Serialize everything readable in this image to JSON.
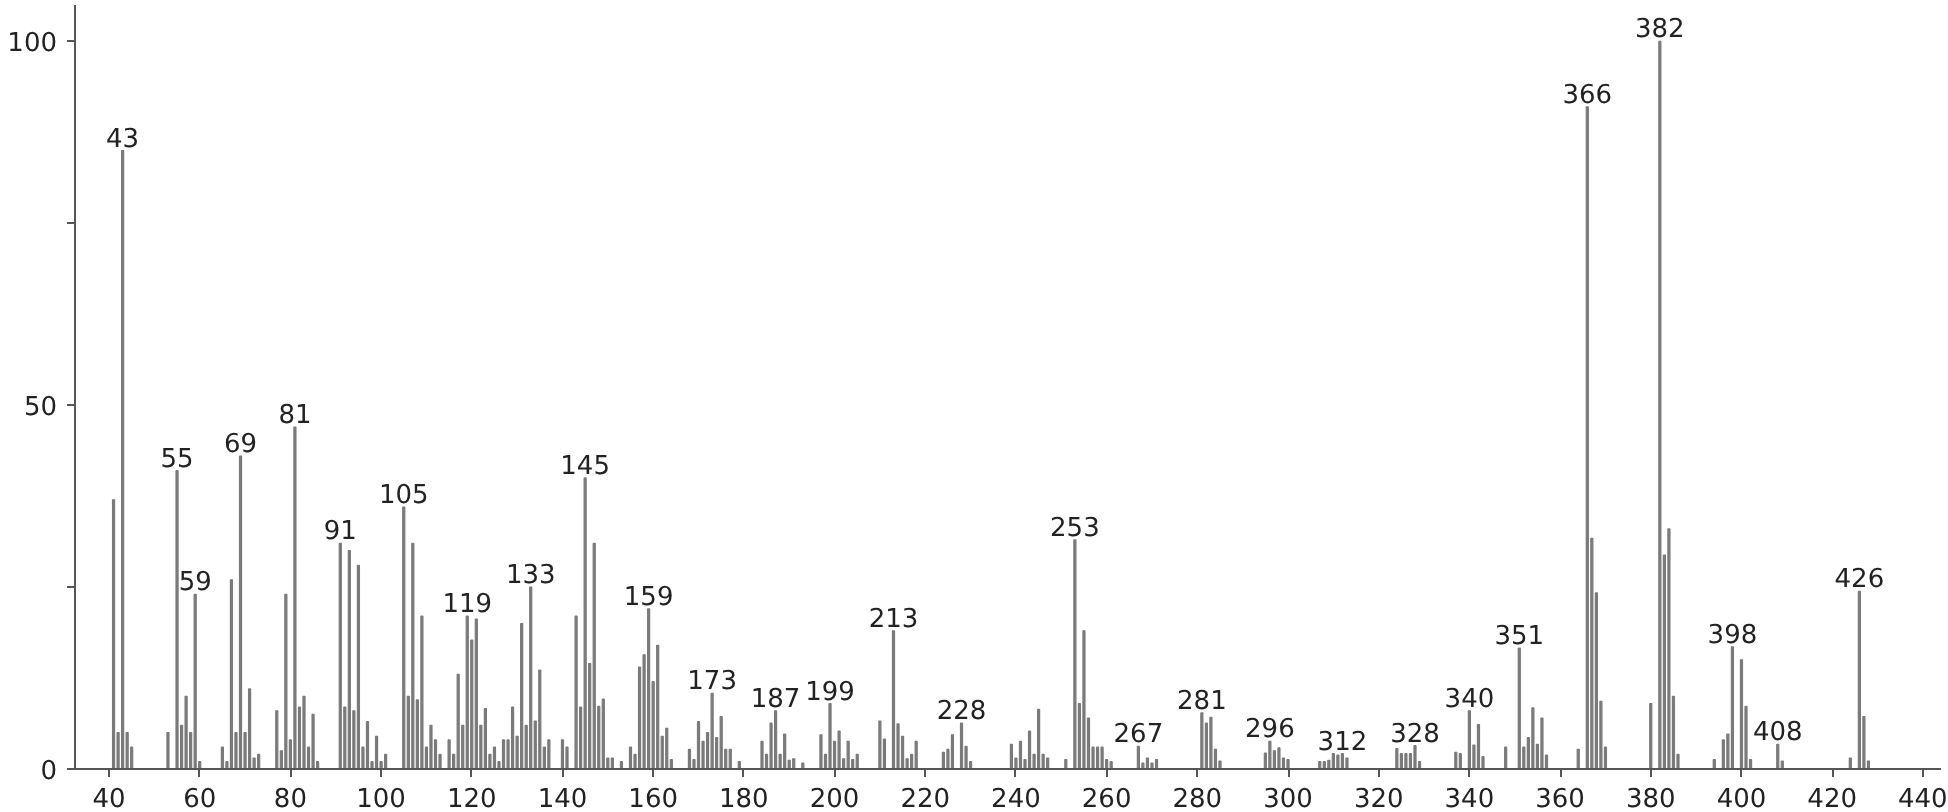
{
  "chart_data": {
    "type": "bar",
    "color": "#7a7a7a",
    "x": [
      41,
      42,
      43,
      44,
      45,
      53,
      55,
      56,
      57,
      58,
      59,
      60,
      65,
      66,
      67,
      68,
      69,
      70,
      71,
      72,
      73,
      77,
      78,
      79,
      80,
      81,
      82,
      83,
      84,
      85,
      86,
      91,
      92,
      93,
      94,
      95,
      96,
      97,
      98,
      99,
      100,
      101,
      105,
      106,
      107,
      108,
      109,
      110,
      111,
      112,
      113,
      115,
      116,
      117,
      118,
      119,
      120,
      121,
      122,
      123,
      124,
      125,
      126,
      127,
      128,
      129,
      130,
      131,
      132,
      133,
      134,
      135,
      136,
      137,
      140,
      141,
      143,
      144,
      145,
      146,
      147,
      148,
      149,
      150,
      151,
      153,
      155,
      156,
      157,
      158,
      159,
      160,
      161,
      162,
      163,
      164,
      168,
      169,
      170,
      171,
      172,
      173,
      174,
      175,
      176,
      177,
      179,
      184,
      185,
      186,
      187,
      188,
      189,
      190,
      191,
      193,
      197,
      198,
      199,
      200,
      201,
      202,
      203,
      204,
      205,
      210,
      211,
      213,
      214,
      215,
      216,
      217,
      218,
      224,
      225,
      226,
      228,
      229,
      230,
      239,
      240,
      241,
      242,
      243,
      244,
      245,
      246,
      247,
      251,
      253,
      254,
      255,
      256,
      257,
      258,
      259,
      260,
      261,
      267,
      268,
      269,
      270,
      271,
      281,
      282,
      283,
      284,
      285,
      295,
      296,
      297,
      298,
      299,
      300,
      307,
      308,
      309,
      310,
      311,
      312,
      313,
      324,
      325,
      326,
      327,
      328,
      329,
      337,
      338,
      340,
      341,
      342,
      343,
      348,
      351,
      352,
      353,
      354,
      355,
      356,
      357,
      364,
      366,
      367,
      368,
      369,
      370,
      380,
      382,
      383,
      384,
      385,
      386,
      394,
      396,
      397,
      398,
      400,
      401,
      402,
      408,
      409,
      424,
      426,
      427,
      428
    ],
    "values": [
      37,
      5,
      85,
      5,
      3,
      5,
      41,
      6,
      10,
      5,
      24,
      1,
      3,
      1,
      26,
      5,
      43,
      5,
      11,
      1.5,
      2,
      8,
      2.5,
      24,
      4,
      47,
      8.5,
      10,
      3,
      7.5,
      1,
      31,
      8.5,
      30,
      8,
      28,
      3,
      6.5,
      1,
      4.5,
      1,
      2,
      36,
      10,
      31,
      9.5,
      21,
      3,
      6,
      4,
      2,
      4,
      2,
      13,
      6,
      21,
      17.7,
      20.6,
      6,
      8.3,
      2,
      3,
      1,
      4,
      4,
      8.5,
      4.5,
      20,
      6,
      25,
      6.6,
      13.6,
      3,
      4,
      4,
      3,
      21,
      8.5,
      40,
      14.5,
      31,
      8.6,
      9.6,
      1.5,
      1.5,
      1,
      3,
      2,
      14,
      15.7,
      22,
      12,
      17,
      4.5,
      5.6,
      1.3,
      2.7,
      1.3,
      6.5,
      3.8,
      5,
      10.4,
      4.3,
      7.2,
      2.7,
      2.7,
      1,
      3.8,
      2,
      6.3,
      8,
      2,
      4.8,
      1.2,
      1.4,
      0.8,
      4.7,
      2,
      9,
      3.8,
      5.2,
      1.4,
      3.8,
      1.3,
      2,
      6.6,
      4.1,
      19,
      6.2,
      4.5,
      1.4,
      2,
      3.8,
      2.3,
      2.7,
      4.7,
      6.3,
      3.1,
      1,
      3.4,
      1.5,
      3.8,
      1.3,
      5.2,
      2,
      8.2,
      2,
      1.5,
      1.3,
      31.5,
      9,
      19,
      7,
      3,
      3,
      3,
      1.3,
      1,
      3.1,
      0.8,
      1.5,
      0.8,
      1.3,
      7.7,
      6.3,
      7.1,
      2.7,
      1.1,
      2.2,
      3.8,
      2.5,
      2.9,
      1.5,
      1.3,
      1,
      1,
      1.2,
      2.1,
      1.9,
      2.1,
      1.5,
      2.8,
      2.1,
      2.1,
      2.1,
      3.2,
      1,
      2.3,
      2.1,
      8,
      3.3,
      6.1,
      1.7,
      3,
      16.6,
      3,
      4.3,
      8.4,
      3.4,
      7,
      1.9,
      2.7,
      91,
      31.7,
      24.2,
      9.3,
      3,
      9,
      100,
      29.4,
      33,
      10,
      2,
      1.3,
      4,
      4.8,
      16.8,
      15,
      8.6,
      1.3,
      3.4,
      1.1,
      1.5,
      24.4,
      7.2,
      1.1
    ],
    "xlim": [
      32.5,
      444
    ],
    "ylim": [
      0,
      105
    ],
    "xticks": [
      40,
      60,
      80,
      100,
      120,
      140,
      160,
      180,
      200,
      220,
      240,
      260,
      280,
      300,
      320,
      340,
      360,
      380,
      400,
      420,
      440
    ],
    "yticks": [
      0,
      {
        "value": 25,
        "label": null
      },
      50,
      {
        "value": 75,
        "label": null
      },
      100
    ],
    "annotations": [
      {
        "text": "43",
        "x": 43,
        "y": 85
      },
      {
        "text": "55",
        "x": 55,
        "y": 41
      },
      {
        "text": "59",
        "x": 59,
        "y": 24
      },
      {
        "text": "69",
        "x": 69,
        "y": 43
      },
      {
        "text": "81",
        "x": 81,
        "y": 47
      },
      {
        "text": "91",
        "x": 91,
        "y": 31
      },
      {
        "text": "105",
        "x": 105,
        "y": 36
      },
      {
        "text": "119",
        "x": 119,
        "y": 21
      },
      {
        "text": "133",
        "x": 133,
        "y": 25
      },
      {
        "text": "145",
        "x": 145,
        "y": 40
      },
      {
        "text": "159",
        "x": 159,
        "y": 22
      },
      {
        "text": "173",
        "x": 173,
        "y": 10.4
      },
      {
        "text": "187",
        "x": 187,
        "y": 8
      },
      {
        "text": "199",
        "x": 199,
        "y": 9
      },
      {
        "text": "213",
        "x": 213,
        "y": 19
      },
      {
        "text": "228",
        "x": 228,
        "y": 6.3
      },
      {
        "text": "253",
        "x": 253,
        "y": 31.5
      },
      {
        "text": "267",
        "x": 267,
        "y": 3.1
      },
      {
        "text": "281",
        "x": 281,
        "y": 7.7
      },
      {
        "text": "296",
        "x": 296,
        "y": 3.8
      },
      {
        "text": "312",
        "x": 312,
        "y": 2.1
      },
      {
        "text": "328",
        "x": 328,
        "y": 3.2
      },
      {
        "text": "340",
        "x": 340,
        "y": 8
      },
      {
        "text": "351",
        "x": 351,
        "y": 16.6
      },
      {
        "text": "366",
        "x": 366,
        "y": 91
      },
      {
        "text": "382",
        "x": 382,
        "y": 100
      },
      {
        "text": "398",
        "x": 398,
        "y": 16.8
      },
      {
        "text": "408",
        "x": 408,
        "y": 3.4
      },
      {
        "text": "426",
        "x": 426,
        "y": 24.4
      }
    ]
  }
}
